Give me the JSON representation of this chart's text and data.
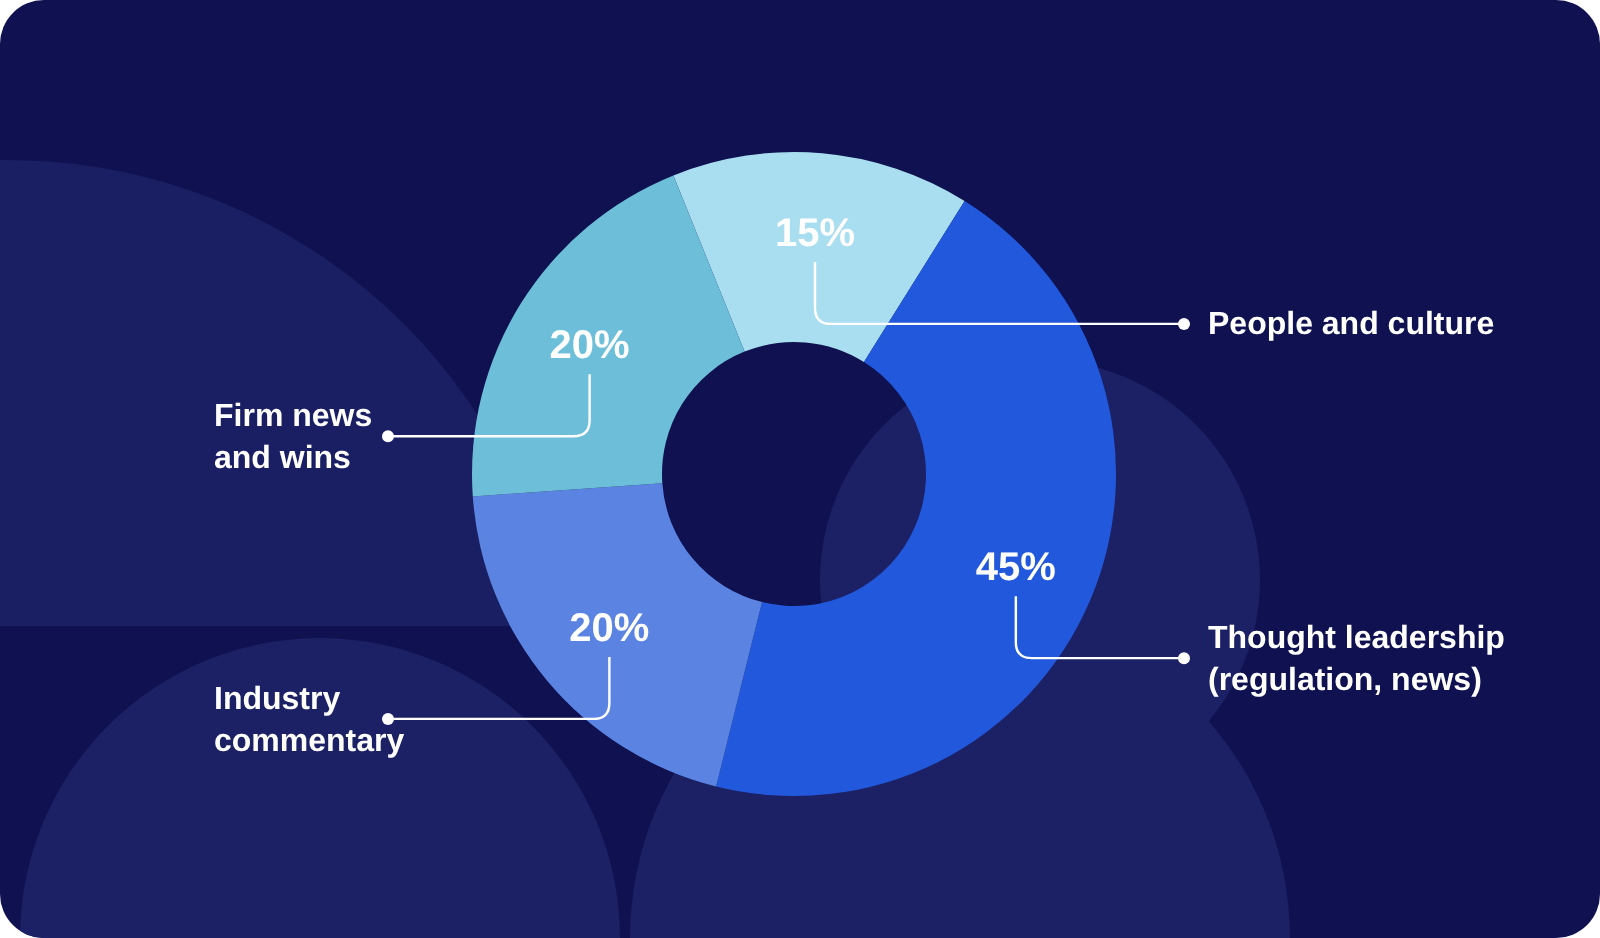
{
  "chart_data": {
    "type": "donut",
    "categories": [
      "People and culture",
      "Thought leadership\n(regulation, news)",
      "Industry\ncommentary",
      "Firm news\nand wins"
    ],
    "values": [
      15,
      45,
      20,
      20
    ],
    "value_labels": [
      "15%",
      "45%",
      "20%",
      "20%"
    ],
    "colors": [
      "#a8def0",
      "#2259dc",
      "#5b84e2",
      "#6dbfd9"
    ]
  }
}
